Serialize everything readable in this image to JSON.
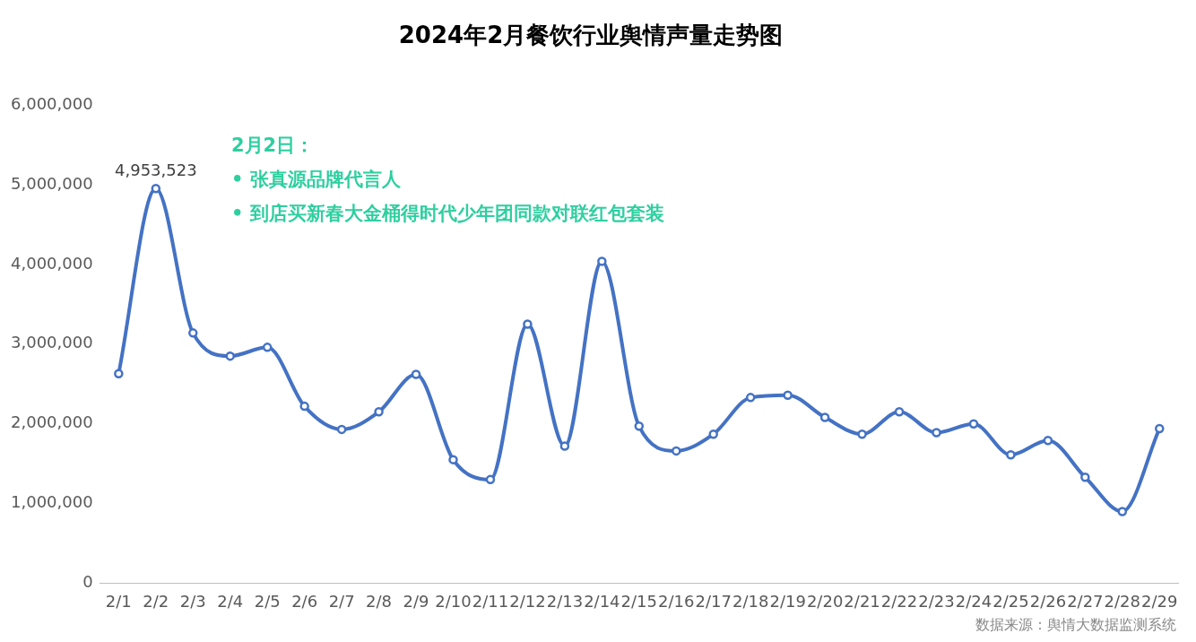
{
  "chart_data": {
    "type": "line",
    "title": "2024年2月餐饮行业舆情声量走势图",
    "categories": [
      "2/1",
      "2/2",
      "2/3",
      "2/4",
      "2/5",
      "2/6",
      "2/7",
      "2/8",
      "2/9",
      "2/10",
      "2/11",
      "2/12",
      "2/13",
      "2/14",
      "2/15",
      "2/16",
      "2/17",
      "2/18",
      "2/19",
      "2/20",
      "2/21",
      "2/22",
      "2/23",
      "2/24",
      "2/25",
      "2/26",
      "2/27",
      "2/28",
      "2/29"
    ],
    "series": [
      {
        "color": "#4472c4",
        "values": [
          2630000,
          4953523,
          3140000,
          2850000,
          2960000,
          2220000,
          1930000,
          2150000,
          2620000,
          1550000,
          1300000,
          3250000,
          1720000,
          4040000,
          1970000,
          1660000,
          1870000,
          2330000,
          2360000,
          2080000,
          1870000,
          2150000,
          1890000,
          2000000,
          1610000,
          1790000,
          1330000,
          900000,
          1940000
        ],
        "value_labels": [
          null,
          "4,953,523",
          null,
          null,
          null,
          null,
          null,
          null,
          null,
          null,
          null,
          null,
          null,
          null,
          null,
          null,
          null,
          null,
          null,
          null,
          null,
          null,
          null,
          null,
          null,
          null,
          null,
          null,
          null
        ]
      }
    ],
    "ylim": [
      0,
      6000000
    ],
    "yticks": [
      0,
      {
        "value": 1000000,
        "label": "1,000,000"
      },
      {
        "value": 2000000,
        "label": "2,000,000"
      },
      {
        "value": 3000000,
        "label": "3,000,000"
      },
      {
        "value": 4000000,
        "label": "4,000,000"
      },
      {
        "value": 5000000,
        "label": "5,000,000"
      },
      {
        "value": 6000000,
        "label": "6,000,000"
      }
    ],
    "grid": false,
    "legend": false,
    "marker": "circle",
    "line_style": "solid",
    "annotations": [
      "2月2日：",
      "•  张真源品牌代言人",
      "•  到店买新春大金桶得时代少年团同款对联红包套装",
      "数据来源：舆情大数据监测系统"
    ]
  }
}
